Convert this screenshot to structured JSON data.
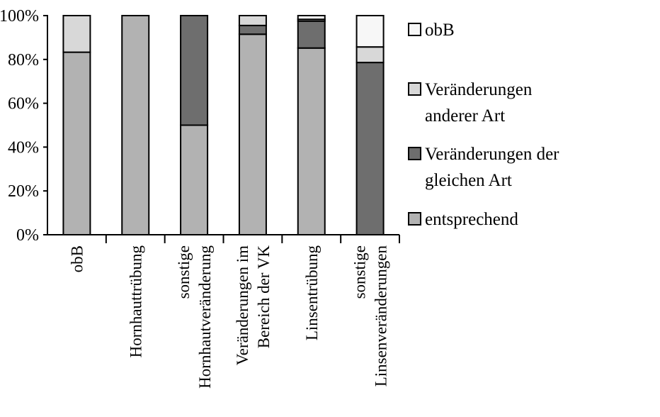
{
  "chart_data": {
    "type": "bar",
    "stacked": true,
    "percent": true,
    "categories": [
      [
        "obB"
      ],
      [
        "Hornhauttrübung"
      ],
      [
        "sonstige",
        "Hornhautveränderung"
      ],
      [
        "Veränderungen im",
        "Bereich der VK"
      ],
      [
        "Linsentrübung"
      ],
      [
        "sonstige",
        "Linsenveränderungen"
      ]
    ],
    "series": [
      {
        "name": "entsprechend",
        "color": "#b2b2b2",
        "values": [
          83.3,
          100,
          50,
          91.5,
          85.2,
          0
        ]
      },
      {
        "name": "Veränderungen der gleichen Art",
        "color": "#6e6e6e",
        "values": [
          0,
          0,
          50,
          4,
          12.3,
          78.6
        ]
      },
      {
        "name": "Veränderungen anderer Art",
        "color": "#d8d8d8",
        "values": [
          16.7,
          0,
          0,
          4.5,
          0.8,
          7.1
        ]
      },
      {
        "name": "obB",
        "color": "#f7f7f7",
        "values": [
          0,
          0,
          0,
          0,
          1.7,
          14.3
        ]
      }
    ],
    "yticks": [
      "0%",
      "20%",
      "40%",
      "60%",
      "80%",
      "100%"
    ],
    "ylim": [
      0,
      100
    ],
    "legend": {
      "position": "right",
      "order": [
        {
          "series": 3,
          "lines": [
            "obB"
          ]
        },
        {
          "series": 2,
          "lines": [
            "Veränderungen",
            "anderer Art"
          ]
        },
        {
          "series": 1,
          "lines": [
            "Veränderungen der",
            "gleichen Art"
          ]
        },
        {
          "series": 0,
          "lines": [
            "entsprechend"
          ]
        }
      ]
    }
  }
}
